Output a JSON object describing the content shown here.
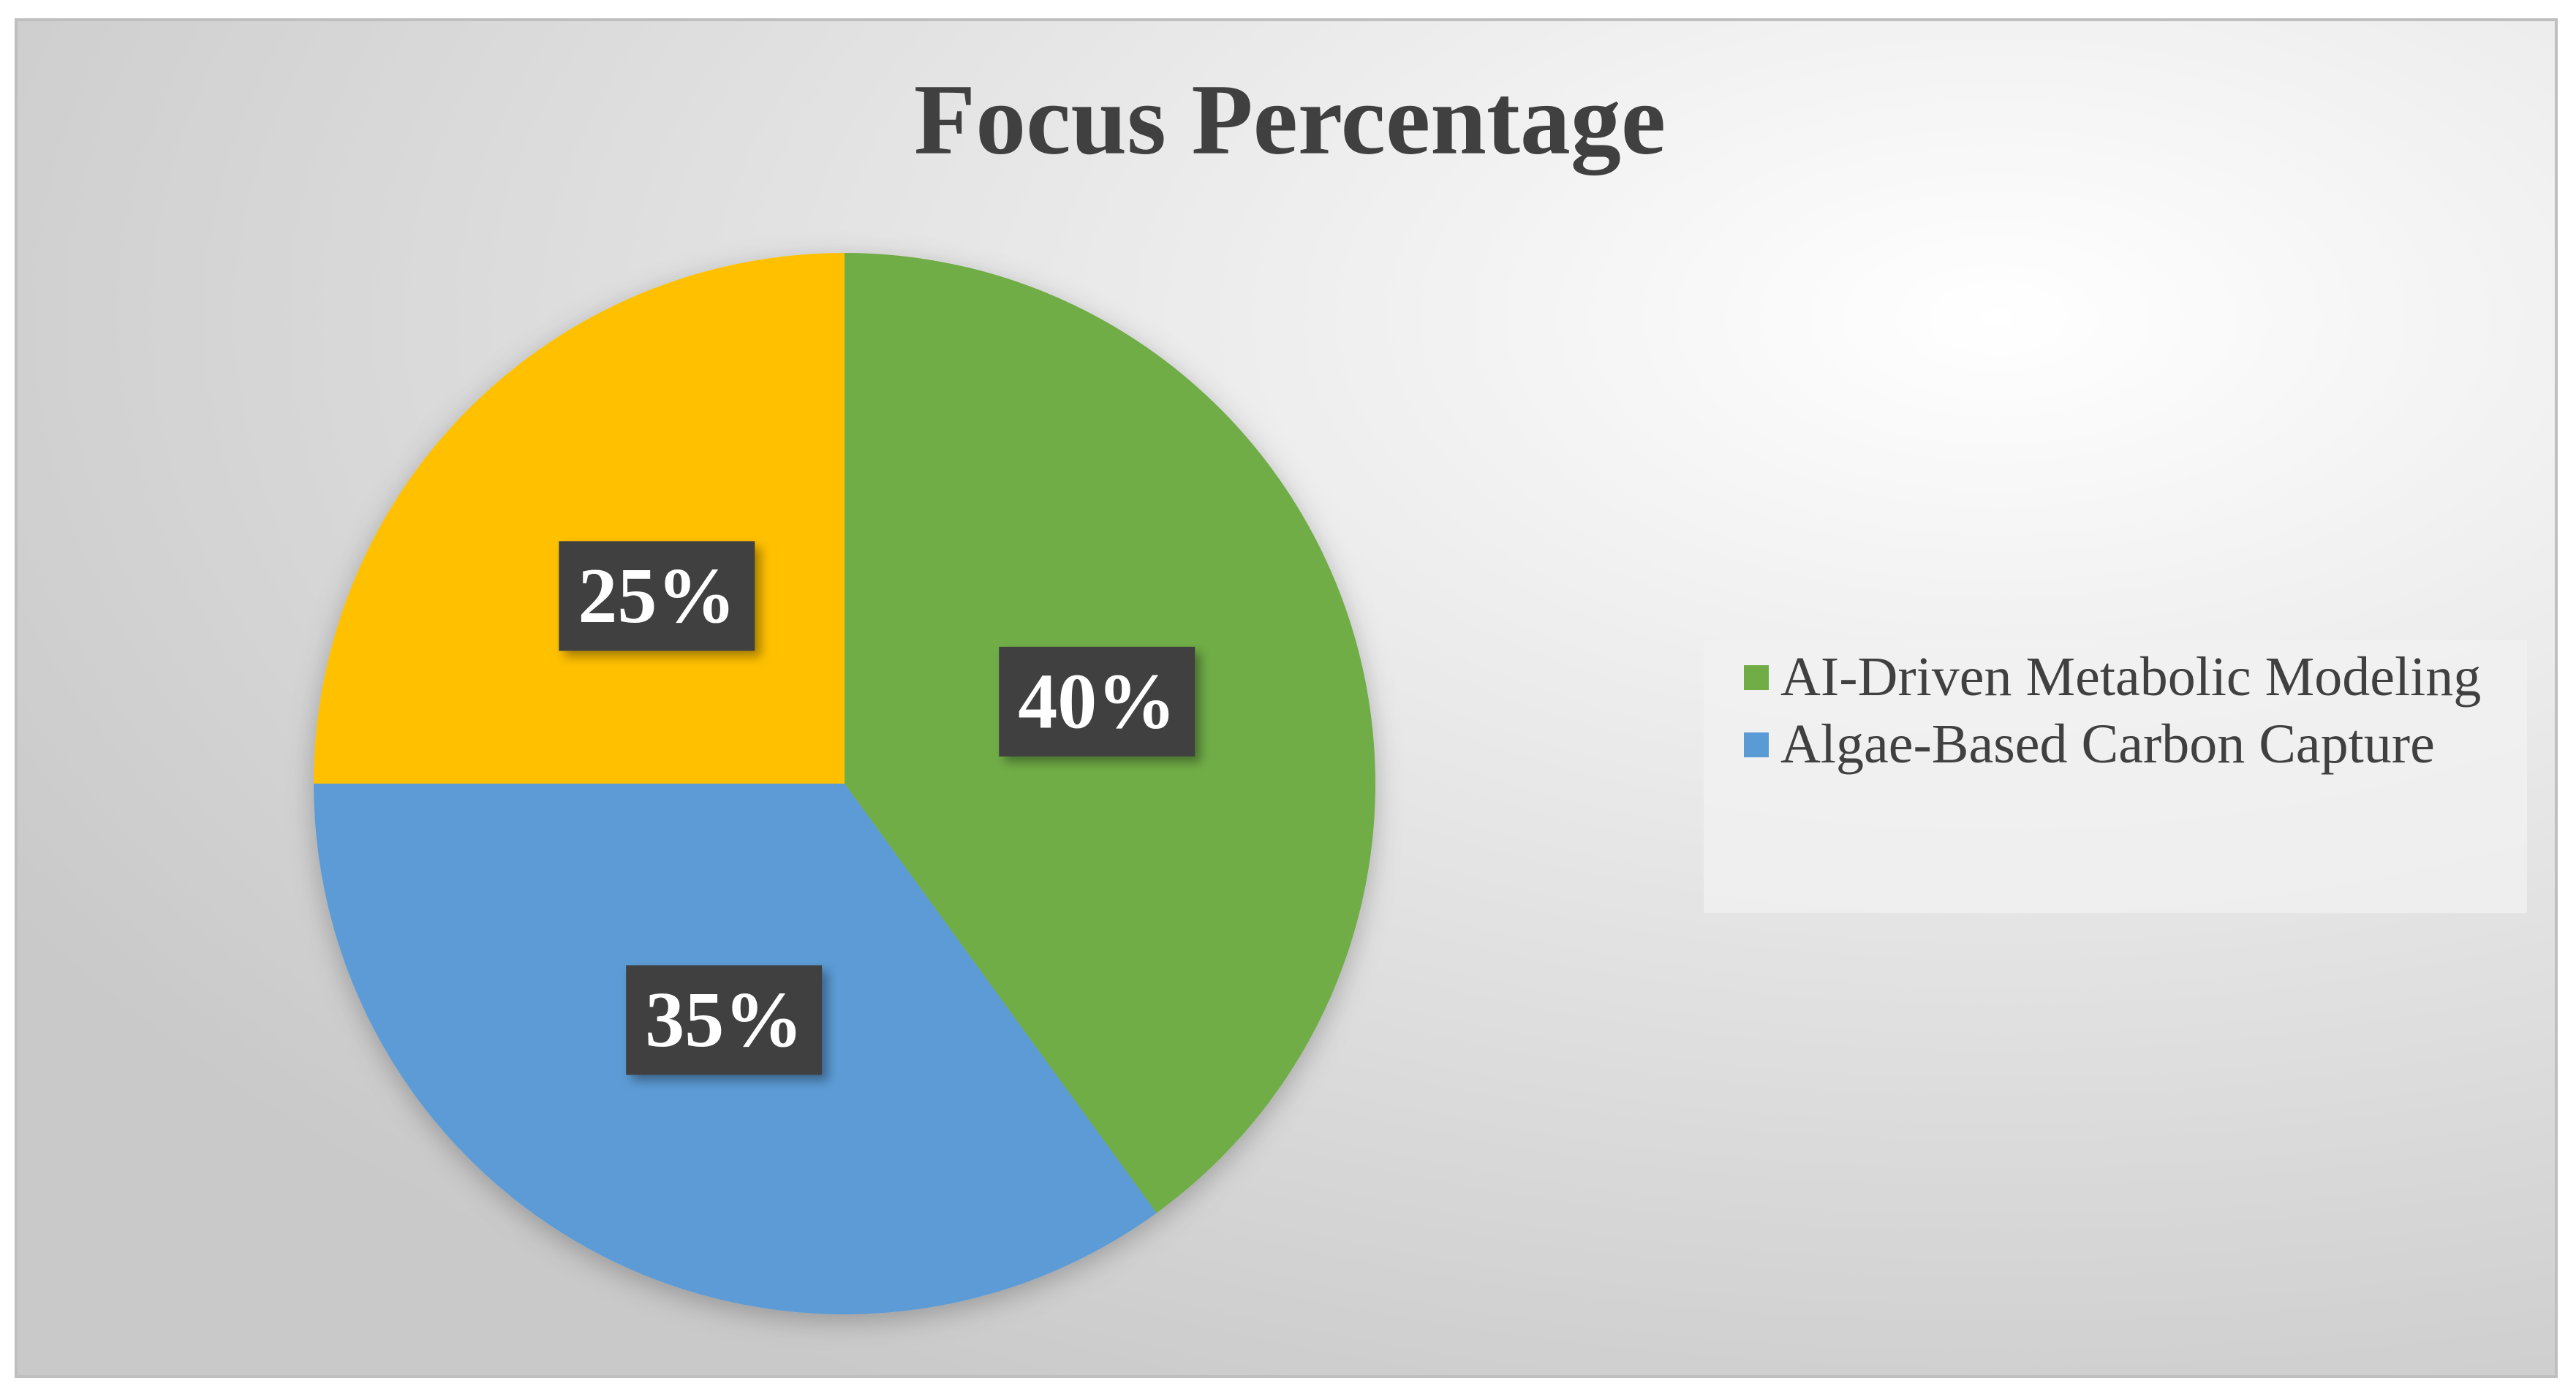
{
  "chart_data": {
    "type": "pie",
    "title": "Focus Percentage",
    "categories": [
      "AI-Driven Metabolic Modeling",
      "Algae-Based Carbon Capture",
      null
    ],
    "values": [
      40,
      35,
      25
    ],
    "value_labels": [
      "40%",
      "35%",
      "25%"
    ],
    "colors": [
      "#70ad47",
      "#5b9bd5",
      "#ffc000"
    ],
    "legend": "right"
  }
}
